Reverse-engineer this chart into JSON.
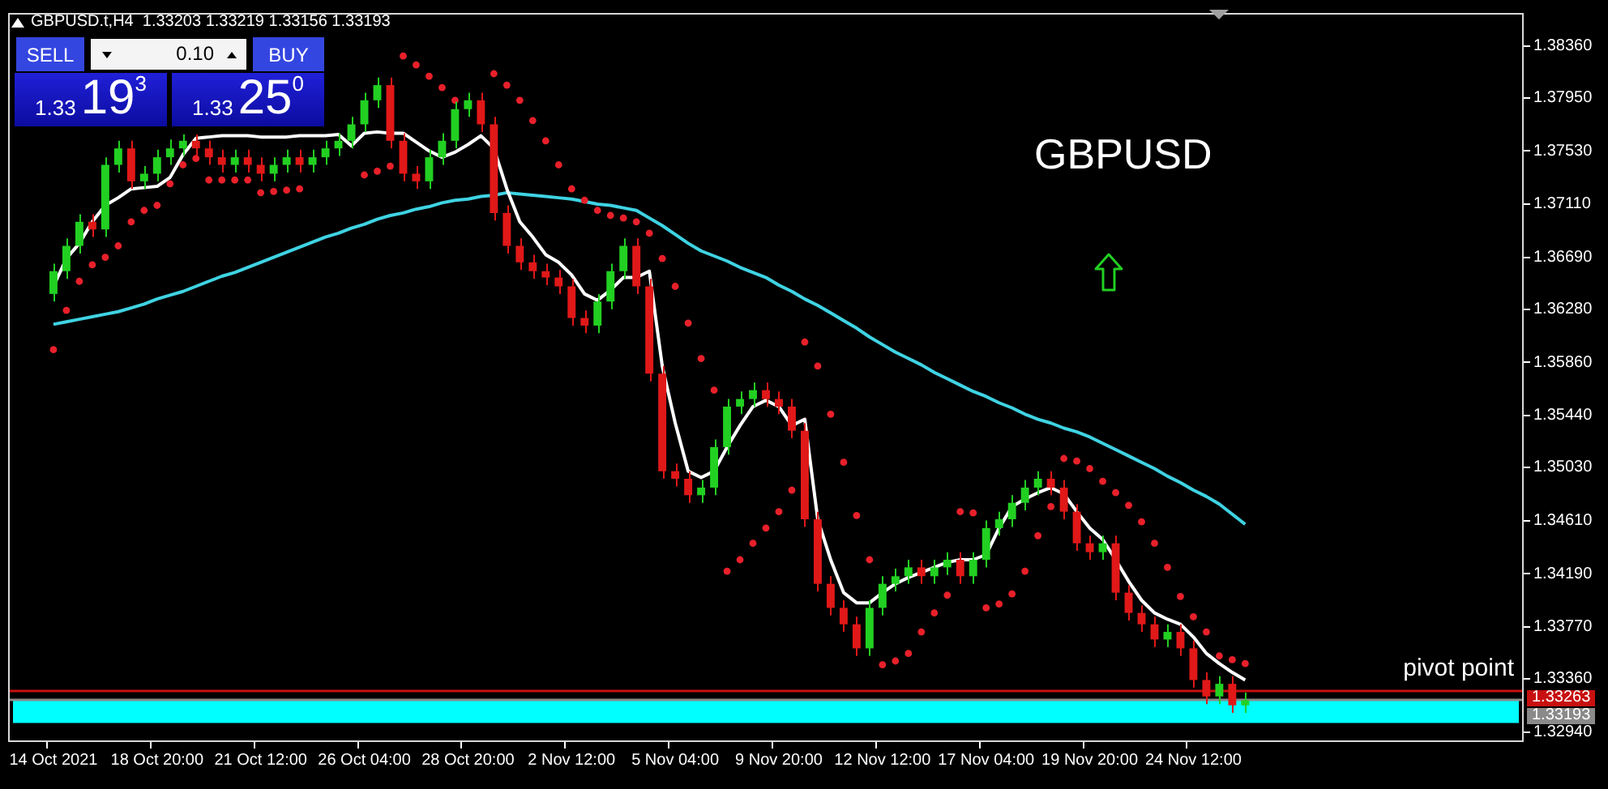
{
  "chart_data": {
    "type": "candlestick",
    "title": "GBPUSD",
    "subtitle": "GBPUSD.t,H4  1.33203 1.33219 1.33156 1.33193",
    "annotations": [
      "SELL",
      "0.10",
      "BUY",
      "1.3319$^{3}$",
      "1.3325$^{0}$",
      "1.33263",
      "1.33193"
    ],
    "categories": [
      null,
      null,
      null,
      "14 Oct 2021",
      null,
      null,
      null,
      null,
      null,
      null,
      null,
      "18 Oct 20:00",
      null,
      null,
      null,
      null,
      null,
      null,
      null,
      "21 Oct 12:00",
      null,
      null,
      null,
      null,
      null,
      null,
      null,
      "26 Oct 04:00",
      null,
      null,
      null,
      null,
      null,
      null,
      null,
      "28 Oct 20:00",
      null,
      null,
      null,
      null,
      null,
      null,
      null,
      "2 Nov 12:00",
      null,
      null,
      null,
      null,
      null,
      null,
      null,
      "5 Nov 04:00",
      null,
      null,
      null,
      null,
      null,
      null,
      null,
      "9 Nov 20:00",
      null,
      null,
      null,
      null,
      null,
      null,
      null,
      "12 Nov 12:00",
      null,
      null,
      null,
      null,
      null,
      null,
      null,
      "17 Nov 04:00",
      null,
      null,
      null,
      null,
      null,
      null,
      null,
      "19 Nov 20:00",
      null,
      null,
      null,
      null,
      null,
      null,
      null,
      "24 Nov 12:00",
      null,
      null,
      null,
      null,
      null,
      null,
      null,
      null,
      null,
      null,
      null,
      null,
      null,
      null,
      null,
      null,
      null,
      null,
      null,
      null,
      null,
      null,
      null,
      null,
      null
    ],
    "ohlc": [
      null,
      null,
      null,
      [
        1.364,
        1.3664,
        1.3634,
        1.3658
      ],
      [
        1.3658,
        1.3684,
        1.3652,
        1.3678
      ],
      [
        1.3678,
        1.3703,
        1.3672,
        1.3697
      ],
      [
        1.3697,
        1.3703,
        1.3685,
        1.3691
      ],
      [
        1.3691,
        1.3748,
        1.3685,
        1.3742
      ],
      [
        1.3742,
        1.3761,
        1.3736,
        1.3755
      ],
      [
        1.3755,
        1.3761,
        1.3723,
        1.3729
      ],
      [
        1.3729,
        1.3741,
        1.3723,
        1.3735
      ],
      [
        1.3735,
        1.3754,
        1.3729,
        1.3748
      ],
      [
        1.3748,
        1.3762,
        1.3742,
        1.3755
      ],
      [
        1.3755,
        1.3766,
        1.3749,
        1.3761
      ],
      [
        1.3761,
        1.3766,
        1.3749,
        1.3755
      ],
      [
        1.3755,
        1.3761,
        1.3742,
        1.3748
      ],
      [
        1.3748,
        1.3754,
        1.3736,
        1.3742
      ],
      [
        1.3742,
        1.3754,
        1.3736,
        1.3748
      ],
      [
        1.3748,
        1.3754,
        1.3736,
        1.3742
      ],
      [
        1.3742,
        1.3748,
        1.3729,
        1.3735
      ],
      [
        1.3735,
        1.3748,
        1.3729,
        1.3742
      ],
      [
        1.3742,
        1.3754,
        1.3736,
        1.3748
      ],
      [
        1.3748,
        1.3754,
        1.3736,
        1.3742
      ],
      [
        1.3742,
        1.3754,
        1.3736,
        1.3748
      ],
      [
        1.3748,
        1.3761,
        1.3742,
        1.3755
      ],
      [
        1.3755,
        1.3767,
        1.3749,
        1.3761
      ],
      [
        1.3761,
        1.378,
        1.3755,
        1.3774
      ],
      [
        1.3774,
        1.3799,
        1.3768,
        1.3793
      ],
      [
        1.3793,
        1.3811,
        1.3787,
        1.3805
      ],
      [
        1.3805,
        1.3811,
        1.3755,
        1.3761
      ],
      [
        1.3761,
        1.3767,
        1.3729,
        1.3735
      ],
      [
        1.3735,
        1.3741,
        1.3723,
        1.3729
      ],
      [
        1.3729,
        1.3754,
        1.3723,
        1.3748
      ],
      [
        1.3748,
        1.3767,
        1.3742,
        1.3761
      ],
      [
        1.3761,
        1.3792,
        1.3755,
        1.3786
      ],
      [
        1.3786,
        1.3799,
        1.378,
        1.3793
      ],
      [
        1.3793,
        1.3799,
        1.3768,
        1.3774
      ],
      [
        1.3774,
        1.378,
        1.3698,
        1.3704
      ],
      [
        1.3704,
        1.371,
        1.3672,
        1.3678
      ],
      [
        1.3678,
        1.3684,
        1.3659,
        1.3665
      ],
      [
        1.3665,
        1.3671,
        1.3652,
        1.3658
      ],
      [
        1.3658,
        1.3664,
        1.3647,
        1.3653
      ],
      [
        1.3653,
        1.3659,
        1.364,
        1.3646
      ],
      [
        1.3646,
        1.3652,
        1.3615,
        1.3621
      ],
      [
        1.3621,
        1.3627,
        1.3609,
        1.3615
      ],
      [
        1.3615,
        1.364,
        1.3609,
        1.3634
      ],
      [
        1.3634,
        1.3664,
        1.3628,
        1.3658
      ],
      [
        1.3658,
        1.3684,
        1.3652,
        1.3678
      ],
      [
        1.3678,
        1.3684,
        1.364,
        1.3646
      ],
      [
        1.3646,
        1.3652,
        1.3571,
        1.3577
      ],
      [
        1.3577,
        1.3583,
        1.3494,
        1.35
      ],
      [
        1.35,
        1.3506,
        1.3488,
        1.3494
      ],
      [
        1.3494,
        1.35,
        1.3475,
        1.3481
      ],
      [
        1.3481,
        1.3493,
        1.3475,
        1.3487
      ],
      [
        1.3487,
        1.3525,
        1.3481,
        1.3519
      ],
      [
        1.3519,
        1.3557,
        1.3513,
        1.3551
      ],
      [
        1.3551,
        1.3563,
        1.3545,
        1.3557
      ],
      [
        1.3557,
        1.357,
        1.3551,
        1.3564
      ],
      [
        1.3564,
        1.357,
        1.3551,
        1.3557
      ],
      [
        1.3557,
        1.3563,
        1.3545,
        1.3551
      ],
      [
        1.3551,
        1.3557,
        1.3526,
        1.3532
      ],
      [
        1.3532,
        1.3538,
        1.3456,
        1.3462
      ],
      [
        1.3462,
        1.3468,
        1.3405,
        1.3411
      ],
      [
        1.3411,
        1.3417,
        1.3386,
        1.3392
      ],
      [
        1.3392,
        1.3398,
        1.3373,
        1.3379
      ],
      [
        1.3379,
        1.3385,
        1.3354,
        1.336
      ],
      [
        1.336,
        1.3398,
        1.3354,
        1.3392
      ],
      [
        1.3392,
        1.3417,
        1.3386,
        1.3411
      ],
      [
        1.3411,
        1.3423,
        1.3405,
        1.3417
      ],
      [
        1.3417,
        1.343,
        1.3411,
        1.3424
      ],
      [
        1.3424,
        1.343,
        1.3411,
        1.3417
      ],
      [
        1.3417,
        1.343,
        1.3411,
        1.3424
      ],
      [
        1.3424,
        1.3436,
        1.3418,
        1.343
      ],
      [
        1.343,
        1.3436,
        1.3411,
        1.3417
      ],
      [
        1.3417,
        1.3436,
        1.3411,
        1.343
      ],
      [
        1.343,
        1.3461,
        1.3424,
        1.3455
      ],
      [
        1.3455,
        1.3468,
        1.3449,
        1.3462
      ],
      [
        1.3462,
        1.3481,
        1.3456,
        1.3475
      ],
      [
        1.3475,
        1.3493,
        1.3469,
        1.3487
      ],
      [
        1.3487,
        1.35,
        1.3481,
        1.3494
      ],
      [
        1.3494,
        1.35,
        1.3481,
        1.3487
      ],
      [
        1.3487,
        1.3493,
        1.3462,
        1.3468
      ],
      [
        1.3468,
        1.3474,
        1.3437,
        1.3443
      ],
      [
        1.3443,
        1.3449,
        1.343,
        1.3436
      ],
      [
        1.3436,
        1.3449,
        1.343,
        1.3443
      ],
      [
        1.3443,
        1.3449,
        1.3398,
        1.3404
      ],
      [
        1.3404,
        1.341,
        1.3382,
        1.3388
      ],
      [
        1.3388,
        1.3394,
        1.3373,
        1.3379
      ],
      [
        1.3379,
        1.3385,
        1.3361,
        1.3367
      ],
      [
        1.3367,
        1.3379,
        1.3361,
        1.3373
      ],
      [
        1.3373,
        1.3379,
        1.3354,
        1.336
      ],
      [
        1.336,
        1.3366,
        1.3329,
        1.3335
      ],
      [
        1.3335,
        1.3341,
        1.3316,
        1.3322
      ],
      [
        1.3322,
        1.3338,
        1.3316,
        1.3332
      ],
      [
        1.3332,
        1.3338,
        1.3309,
        1.3315
      ],
      [
        1.3315,
        1.3325,
        1.3309,
        1.3319
      ],
      null,
      null,
      null,
      null,
      null,
      null,
      null,
      null,
      null,
      null,
      null,
      null,
      null,
      null,
      null,
      null,
      null,
      null,
      null,
      null,
      null
    ],
    "series": [
      {
        "type": "line",
        "color": "#ffffff",
        "values": [
          null,
          null,
          null,
          1.3646,
          1.3668,
          1.368,
          1.3697,
          1.371,
          1.3716,
          1.3723,
          1.3724,
          1.3725,
          1.3732,
          1.375,
          1.3763,
          1.3764,
          1.3765,
          1.3765,
          1.3765,
          1.3764,
          1.3764,
          1.3764,
          1.3765,
          1.3765,
          1.3765,
          1.3766,
          1.3757,
          1.3767,
          1.3768,
          1.3767,
          1.3767,
          1.376,
          1.3753,
          1.3748,
          1.3752,
          1.3758,
          1.3765,
          1.3755,
          1.3723,
          1.3697,
          1.3685,
          1.3671,
          1.3665,
          1.3655,
          1.364,
          1.3635,
          1.3643,
          1.3653,
          1.3653,
          1.3658,
          1.3583,
          1.3538,
          1.35,
          1.3495,
          1.35,
          1.3519,
          1.3536,
          1.3551,
          1.3556,
          1.3551,
          1.3536,
          1.3541,
          1.3462,
          1.343,
          1.3404,
          1.3396,
          1.3396,
          1.3404,
          1.3411,
          1.3416,
          1.342,
          1.3424,
          1.3428,
          1.343,
          1.343,
          1.3434,
          1.3455,
          1.3472,
          1.3478,
          1.3483,
          1.3487,
          1.3482,
          1.3468,
          1.3455,
          1.3446,
          1.343,
          1.3413,
          1.3398,
          1.3388,
          1.3383,
          1.3379,
          1.3369,
          1.3356,
          1.3348,
          1.3341,
          1.3335,
          null,
          null,
          null,
          null,
          null,
          null,
          null,
          null,
          null,
          null,
          null,
          null,
          null,
          null,
          null,
          null,
          null,
          null,
          null,
          null,
          null
        ]
      },
      {
        "type": "line",
        "color": "#3fd3e3",
        "values": [
          null,
          null,
          null,
          1.3616,
          1.3618,
          1.362,
          1.3622,
          1.3624,
          1.3626,
          1.3629,
          1.3632,
          1.3636,
          1.3639,
          1.3642,
          1.3646,
          1.365,
          1.3654,
          1.3657,
          1.3661,
          1.3665,
          1.3669,
          1.3673,
          1.3677,
          1.3681,
          1.3685,
          1.3688,
          1.3692,
          1.3695,
          1.3699,
          1.3702,
          1.3704,
          1.3707,
          1.3709,
          1.3712,
          1.3714,
          1.3715,
          1.3717,
          1.3718,
          1.372,
          1.3719,
          1.3718,
          1.3717,
          1.3716,
          1.3715,
          1.3713,
          1.3711,
          1.371,
          1.3708,
          1.3706,
          1.37,
          1.3694,
          1.3687,
          1.368,
          1.3674,
          1.367,
          1.3666,
          1.3661,
          1.3657,
          1.3653,
          1.3647,
          1.3642,
          1.3636,
          1.3631,
          1.3625,
          1.3619,
          1.3613,
          1.3606,
          1.36,
          1.3594,
          1.3589,
          1.3584,
          1.3578,
          1.3573,
          1.3568,
          1.3563,
          1.3559,
          1.3554,
          1.355,
          1.3545,
          1.3541,
          1.3538,
          1.3534,
          1.3531,
          1.3527,
          1.3522,
          1.3517,
          1.3512,
          1.3507,
          1.3502,
          1.3496,
          1.3491,
          1.3485,
          1.348,
          1.3474,
          1.3466,
          1.3458,
          null,
          null,
          null,
          null,
          null,
          null,
          null,
          null,
          null,
          null,
          null,
          null,
          null,
          null,
          null,
          null,
          null,
          null,
          null,
          null,
          null
        ]
      },
      {
        "type": "scatter",
        "color": "#e8202a",
        "marker": "circle",
        "values": [
          null,
          null,
          null,
          1.3596,
          1.3627,
          1.365,
          1.3663,
          1.3669,
          1.3678,
          1.3697,
          1.3706,
          1.371,
          1.3727,
          1.3742,
          1.3747,
          1.373,
          1.373,
          1.373,
          1.373,
          1.372,
          1.3721,
          1.3722,
          1.3723,
          null,
          null,
          null,
          null,
          1.3734,
          1.3737,
          1.3741,
          1.3828,
          1.3821,
          1.3812,
          1.3803,
          1.3793,
          null,
          null,
          1.3814,
          1.3805,
          1.3793,
          1.3777,
          1.3761,
          1.3742,
          1.3723,
          1.3714,
          1.3706,
          1.3702,
          1.37,
          1.3697,
          1.3688,
          1.3668,
          1.3646,
          1.3617,
          1.3589,
          1.3564,
          1.3421,
          1.343,
          1.3443,
          1.3455,
          1.3468,
          1.3485,
          1.3602,
          1.3583,
          1.3545,
          1.3507,
          1.3465,
          1.343,
          1.3347,
          1.335,
          1.3356,
          1.3373,
          1.3388,
          1.3402,
          1.3468,
          1.3467,
          1.3392,
          1.3395,
          1.3403,
          1.3421,
          1.3449,
          1.3472,
          1.351,
          1.3508,
          1.3502,
          1.3492,
          1.3483,
          1.3473,
          1.346,
          1.3443,
          1.3424,
          1.3401,
          1.3385,
          1.3373,
          1.3354,
          1.3351,
          1.3348,
          null,
          null,
          null,
          null,
          null,
          null,
          null,
          null,
          null,
          null,
          null,
          null,
          null,
          null,
          null,
          null,
          null,
          null,
          null,
          null,
          null
        ]
      }
    ],
    "ylim": [
      1.3286,
      1.3862
    ],
    "yticks": [
      {
        "value": 1.3836,
        "label": "1.38360"
      },
      {
        "value": 1.3795,
        "label": "1.37950"
      },
      {
        "value": 1.3753,
        "label": "1.37530"
      },
      {
        "value": 1.3711,
        "label": "1.37110"
      },
      {
        "value": 1.3669,
        "label": "1.36690"
      },
      {
        "value": 1.3628,
        "label": "1.36280"
      },
      {
        "value": 1.3586,
        "label": "1.35860"
      },
      {
        "value": 1.3544,
        "label": "1.35440"
      },
      {
        "value": 1.3503,
        "label": "1.35030"
      },
      {
        "value": 1.3461,
        "label": "1.34610"
      },
      {
        "value": 1.3419,
        "label": "1.34190"
      },
      {
        "value": 1.3377,
        "label": "1.33770"
      },
      {
        "value": 1.3336,
        "label": "1.33360"
      },
      {
        "value": 1.3294,
        "label": "1.32940"
      }
    ],
    "ref_lines": [
      {
        "axis": "y",
        "value": 1.33263,
        "label": "pivot point",
        "color": "#c81010"
      },
      {
        "axis": "y",
        "value": 1.33193,
        "color": "#8a8a8a"
      }
    ],
    "bands": [
      {
        "axis": "y",
        "from": 1.3301,
        "to": 1.3319,
        "color": "#00ffff"
      }
    ]
  }
}
